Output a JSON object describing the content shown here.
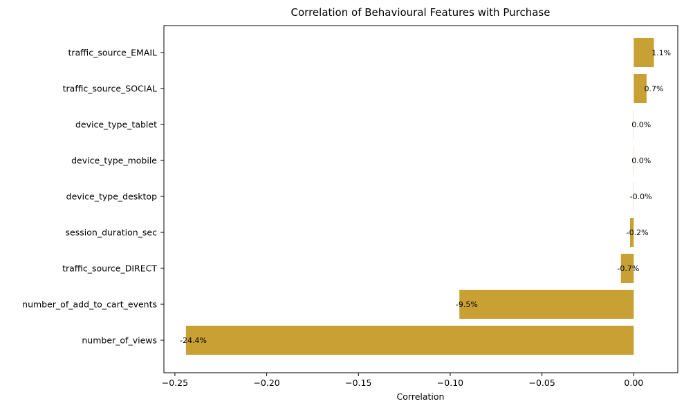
{
  "chart_data": {
    "type": "bar",
    "orientation": "horizontal",
    "title": "Correlation of Behavioural Features with Purchase",
    "xlabel": "Correlation",
    "ylabel": "",
    "categories": [
      "traffic_source_EMAIL",
      "traffic_source_SOCIAL",
      "device_type_tablet",
      "device_type_mobile",
      "device_type_desktop",
      "session_duration_sec",
      "traffic_source_DIRECT",
      "number_of_add_to_cart_events",
      "number_of_views"
    ],
    "values": [
      0.011,
      0.007,
      0.0001,
      0.0001,
      -0.0001,
      -0.002,
      -0.007,
      -0.095,
      -0.244
    ],
    "data_labels": [
      "1.1%",
      "0.7%",
      "0.0%",
      "0.0%",
      "-0.0%",
      "-0.2%",
      "-0.7%",
      "-9.5%",
      "-24.4%"
    ],
    "xlim": [
      -0.256,
      0.024
    ],
    "xticks": [
      -0.25,
      -0.2,
      -0.15,
      -0.1,
      -0.05,
      0.0
    ],
    "xtick_labels": [
      "−0.25",
      "−0.20",
      "−0.15",
      "−0.10",
      "−0.05",
      "0.00"
    ],
    "bar_color": "#c9a033",
    "grid": false,
    "legend": "none"
  }
}
